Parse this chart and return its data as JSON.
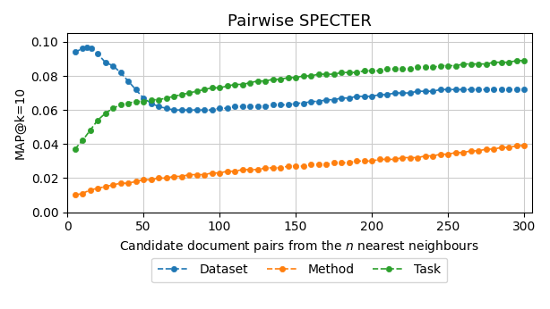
{
  "title": "Pairwise SPECTER",
  "xlabel": "Candidate document pairs from the $n$ nearest neighbours",
  "ylabel": "MAP@k=10",
  "xlim": [
    0,
    305
  ],
  "ylim": [
    0.0,
    0.105
  ],
  "yticks": [
    0.0,
    0.02,
    0.04,
    0.06,
    0.08,
    0.1
  ],
  "xticks": [
    0,
    50,
    100,
    150,
    200,
    250,
    300
  ],
  "colors": {
    "dataset": "#1f77b4",
    "method": "#ff7f0e",
    "task": "#2ca02c"
  },
  "dataset_x": [
    5,
    10,
    13,
    16,
    20,
    25,
    30,
    35,
    40,
    45,
    50,
    55,
    60,
    65,
    70,
    75,
    80,
    85,
    90,
    95,
    100,
    105,
    110,
    115,
    120,
    125,
    130,
    135,
    140,
    145,
    150,
    155,
    160,
    165,
    170,
    175,
    180,
    185,
    190,
    195,
    200,
    205,
    210,
    215,
    220,
    225,
    230,
    235,
    240,
    245,
    250,
    255,
    260,
    265,
    270,
    275,
    280,
    285,
    290,
    295,
    300
  ],
  "dataset_y": [
    0.094,
    0.096,
    0.097,
    0.096,
    0.093,
    0.088,
    0.086,
    0.082,
    0.077,
    0.072,
    0.067,
    0.064,
    0.062,
    0.061,
    0.06,
    0.06,
    0.06,
    0.06,
    0.06,
    0.06,
    0.061,
    0.061,
    0.062,
    0.062,
    0.062,
    0.062,
    0.062,
    0.063,
    0.063,
    0.063,
    0.064,
    0.064,
    0.065,
    0.065,
    0.066,
    0.066,
    0.067,
    0.067,
    0.068,
    0.068,
    0.068,
    0.069,
    0.069,
    0.07,
    0.07,
    0.07,
    0.071,
    0.071,
    0.071,
    0.072,
    0.072,
    0.072,
    0.072,
    0.072,
    0.072,
    0.072,
    0.072,
    0.072,
    0.072,
    0.072,
    0.072
  ],
  "method_x": [
    5,
    10,
    15,
    20,
    25,
    30,
    35,
    40,
    45,
    50,
    55,
    60,
    65,
    70,
    75,
    80,
    85,
    90,
    95,
    100,
    105,
    110,
    115,
    120,
    125,
    130,
    135,
    140,
    145,
    150,
    155,
    160,
    165,
    170,
    175,
    180,
    185,
    190,
    195,
    200,
    205,
    210,
    215,
    220,
    225,
    230,
    235,
    240,
    245,
    250,
    255,
    260,
    265,
    270,
    275,
    280,
    285,
    290,
    295,
    300
  ],
  "method_y": [
    0.01,
    0.011,
    0.013,
    0.014,
    0.015,
    0.016,
    0.017,
    0.017,
    0.018,
    0.019,
    0.019,
    0.02,
    0.02,
    0.021,
    0.021,
    0.022,
    0.022,
    0.022,
    0.023,
    0.023,
    0.024,
    0.024,
    0.025,
    0.025,
    0.025,
    0.026,
    0.026,
    0.026,
    0.027,
    0.027,
    0.027,
    0.028,
    0.028,
    0.028,
    0.029,
    0.029,
    0.029,
    0.03,
    0.03,
    0.03,
    0.031,
    0.031,
    0.031,
    0.032,
    0.032,
    0.032,
    0.033,
    0.033,
    0.034,
    0.034,
    0.035,
    0.035,
    0.036,
    0.036,
    0.037,
    0.037,
    0.038,
    0.038,
    0.039,
    0.039
  ],
  "task_x": [
    5,
    10,
    15,
    20,
    25,
    30,
    35,
    40,
    45,
    50,
    55,
    60,
    65,
    70,
    75,
    80,
    85,
    90,
    95,
    100,
    105,
    110,
    115,
    120,
    125,
    130,
    135,
    140,
    145,
    150,
    155,
    160,
    165,
    170,
    175,
    180,
    185,
    190,
    195,
    200,
    205,
    210,
    215,
    220,
    225,
    230,
    235,
    240,
    245,
    250,
    255,
    260,
    265,
    270,
    275,
    280,
    285,
    290,
    295,
    300
  ],
  "task_y": [
    0.037,
    0.042,
    0.048,
    0.054,
    0.058,
    0.061,
    0.063,
    0.064,
    0.065,
    0.065,
    0.066,
    0.066,
    0.067,
    0.068,
    0.069,
    0.07,
    0.071,
    0.072,
    0.073,
    0.073,
    0.074,
    0.075,
    0.075,
    0.076,
    0.077,
    0.077,
    0.078,
    0.078,
    0.079,
    0.079,
    0.08,
    0.08,
    0.081,
    0.081,
    0.081,
    0.082,
    0.082,
    0.082,
    0.083,
    0.083,
    0.083,
    0.084,
    0.084,
    0.084,
    0.084,
    0.085,
    0.085,
    0.085,
    0.086,
    0.086,
    0.086,
    0.087,
    0.087,
    0.087,
    0.087,
    0.088,
    0.088,
    0.088,
    0.089,
    0.089
  ]
}
